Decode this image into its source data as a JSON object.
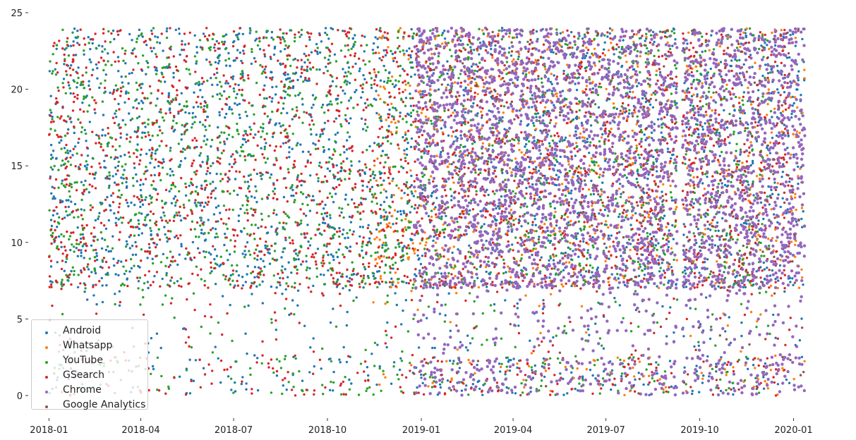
{
  "chart_data": {
    "type": "scatter",
    "title": "",
    "xlabel": "",
    "ylabel": "",
    "x_axis": "date",
    "xlim": [
      "2017-12-13",
      "2020-01-20"
    ],
    "ylim": [
      -1.2,
      25
    ],
    "y_ticks": [
      0,
      5,
      10,
      15,
      20,
      25
    ],
    "x_ticks": [
      "2018-01",
      "2018-04",
      "2018-07",
      "2018-10",
      "2019-01",
      "2019-04",
      "2019-07",
      "2019-10",
      "2020-01"
    ],
    "grid": false,
    "legend_position": "lower-left",
    "series": [
      {
        "name": "Android",
        "color": "#1f77b4",
        "date_range": [
          "2018-01-01",
          "2020-01-12"
        ],
        "value_range": [
          0,
          24
        ]
      },
      {
        "name": "Whatsapp",
        "color": "#ff7f0e",
        "date_range": [
          "2018-11-15",
          "2020-01-12"
        ],
        "value_range": [
          0,
          24
        ]
      },
      {
        "name": "YouTube",
        "color": "#2ca02c",
        "date_range": [
          "2018-01-01",
          "2019-12-10"
        ],
        "value_range": [
          0,
          24
        ]
      },
      {
        "name": "GSearch",
        "color": "#d62728",
        "date_range": [
          "2018-01-01",
          "2019-12-31"
        ],
        "value_range": [
          0,
          24
        ]
      },
      {
        "name": "Chrome",
        "color": "#9467bd",
        "date_range": [
          "2018-12-25",
          "2020-01-12"
        ],
        "value_range": [
          0,
          24
        ]
      },
      {
        "name": "Google Analytics",
        "color": "#8c564b",
        "date_range": [
          "2018-12-25",
          "2020-01-12"
        ],
        "value_range": [
          0,
          24
        ]
      }
    ]
  },
  "legend": {
    "items": [
      {
        "label": "Android",
        "color": "#1f77b4"
      },
      {
        "label": "Whatsapp",
        "color": "#ff7f0e"
      },
      {
        "label": "YouTube",
        "color": "#2ca02c"
      },
      {
        "label": "GSearch",
        "color": "#d62728"
      },
      {
        "label": "Chrome",
        "color": "#9467bd"
      },
      {
        "label": "Google Analytics",
        "color": "#8c564b"
      }
    ]
  }
}
